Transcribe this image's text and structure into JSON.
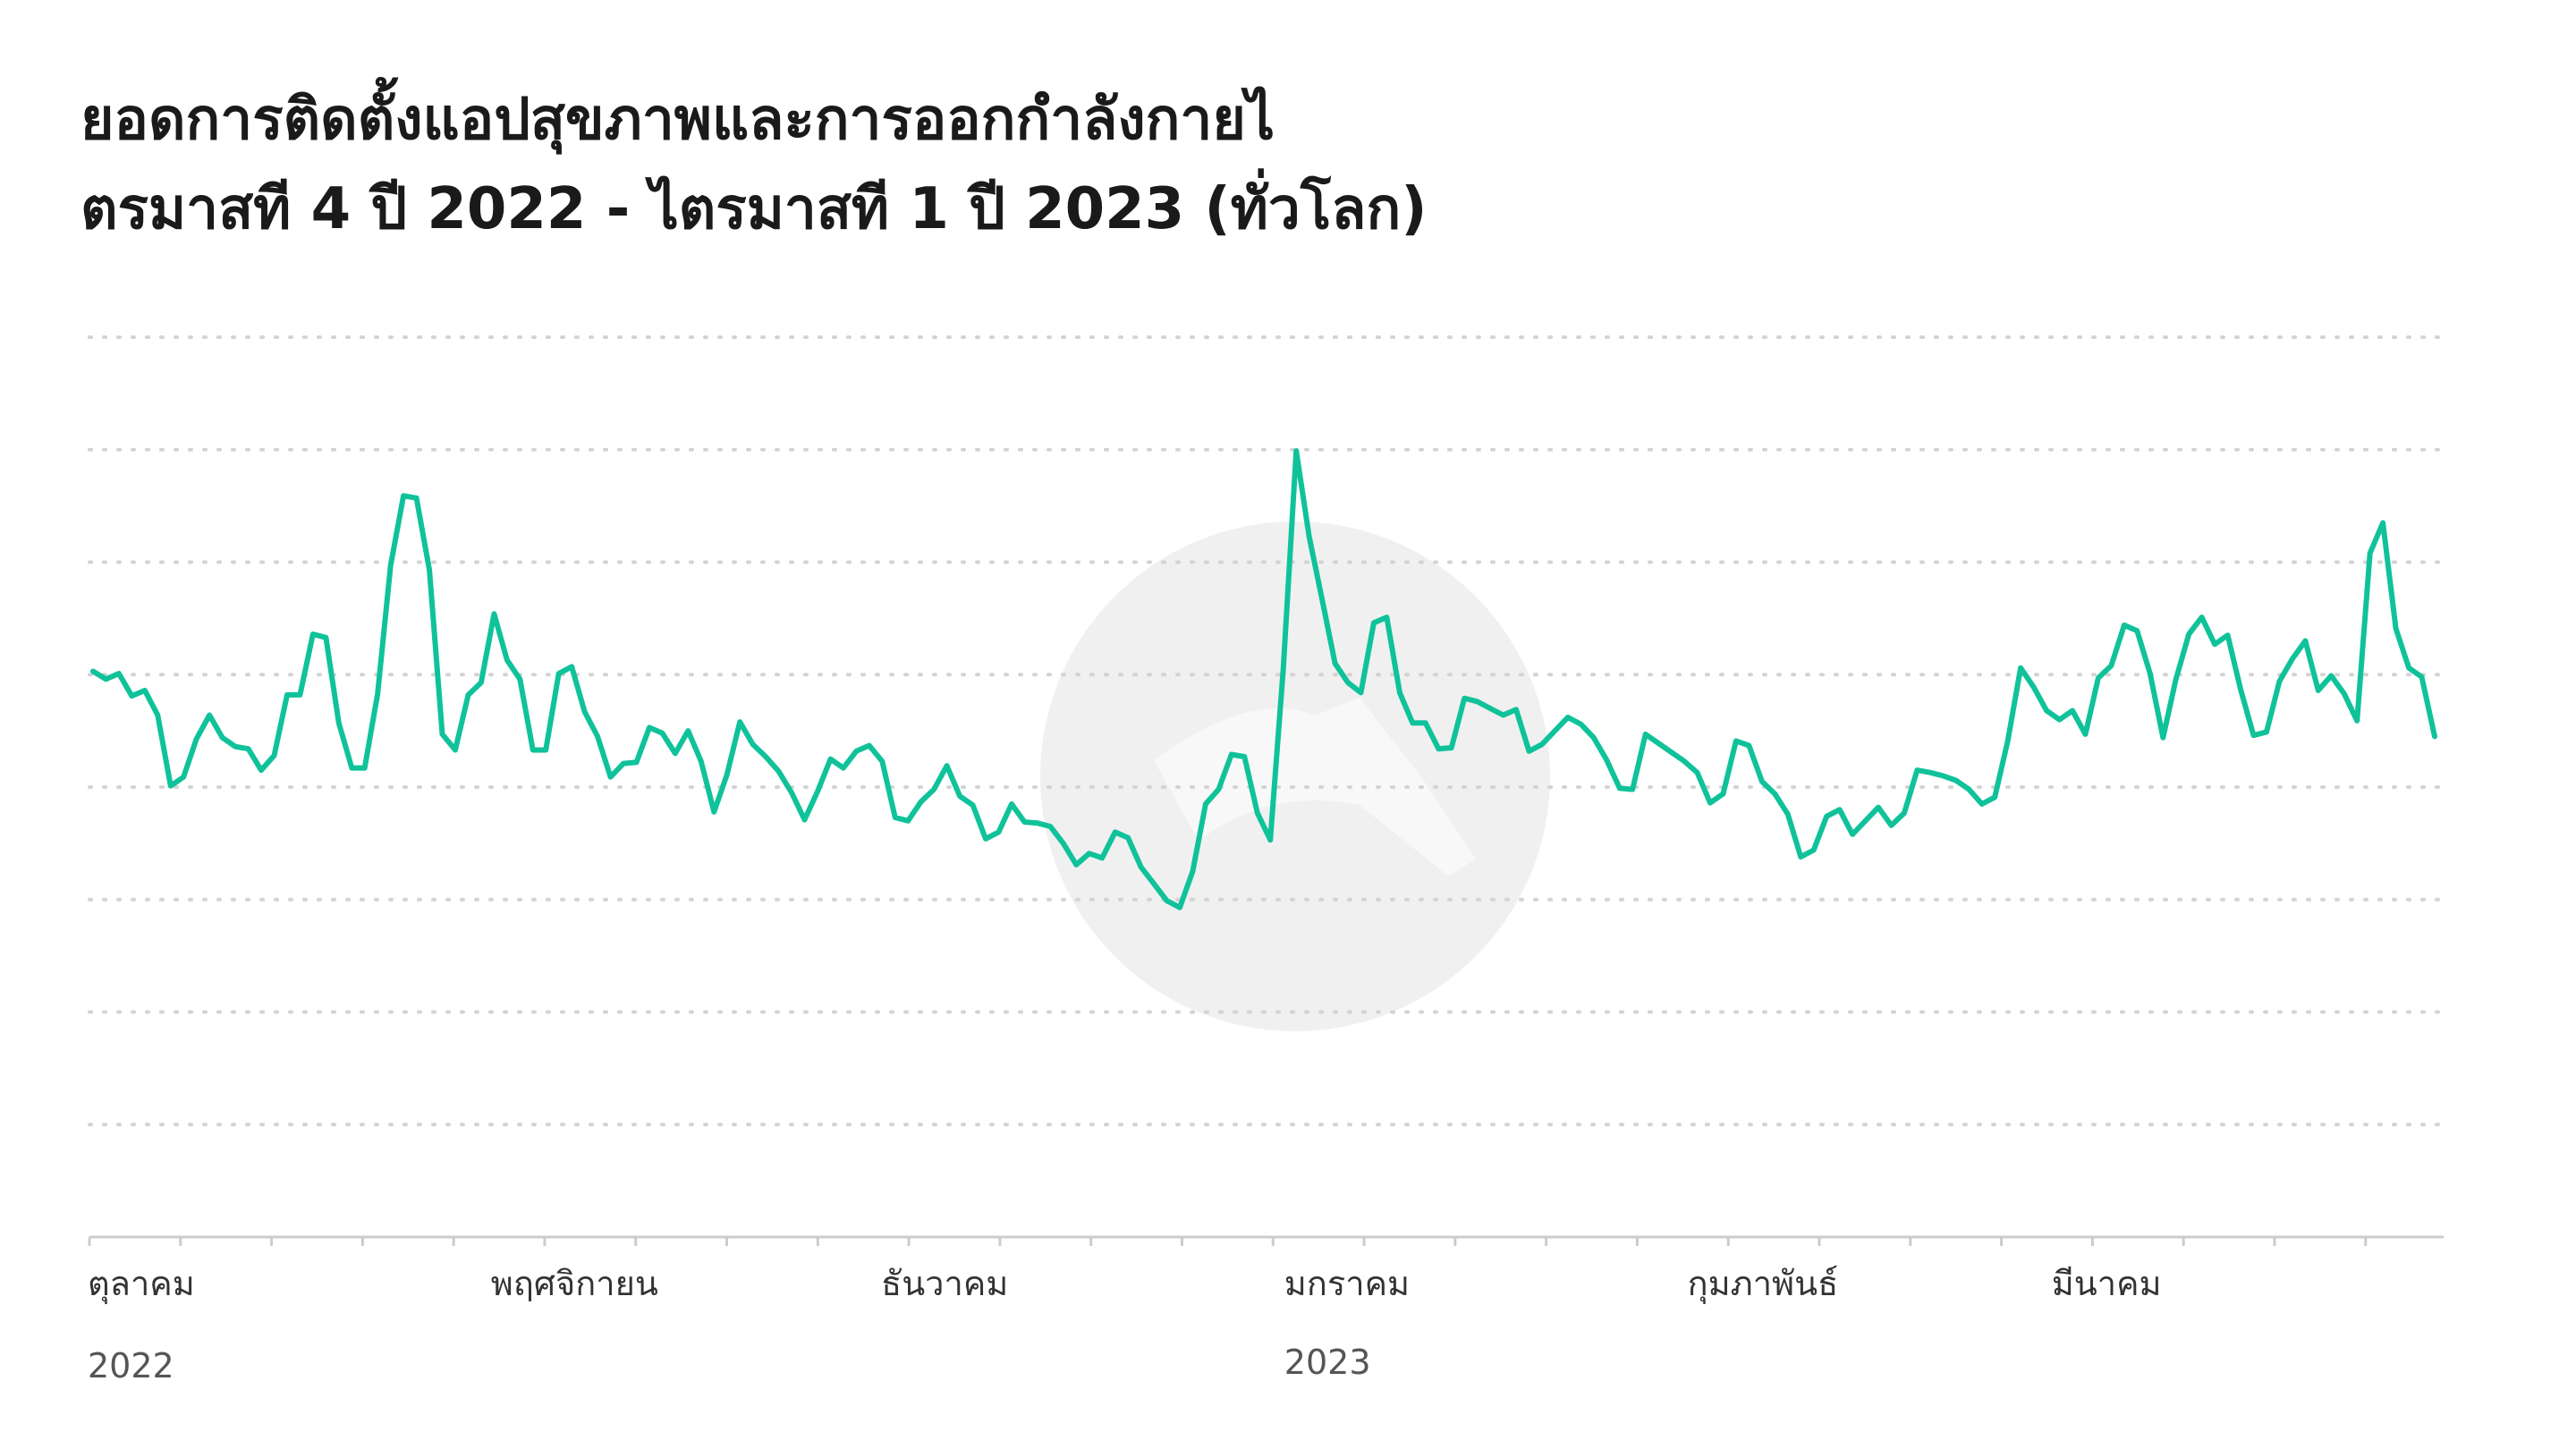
{
  "title_line1": "ยอดการติดตั้งแอปสุขภาพและการออกกำลังกายไ",
  "title_line2": "ตรมาสที 4 ปี 2022 - ไตรมาสที 1 ปี 2023 (ทั่วโลก)",
  "colors": {
    "line": "#10c29a",
    "grid": "#d3d3d3",
    "axis": "#cccccc",
    "watermark": "#f0f0f0"
  },
  "watermark_icon": "app-logo-icon",
  "chart_data": {
    "type": "line",
    "title": "ยอดการติดตั้งแอปสุขภาพและการออกกำลังกายไตรมาสที 4 ปี 2022 - ไตรมาสที 1 ปี 2023 (ทั่วโลก)",
    "xlabel": "",
    "ylabel": "",
    "x_start": "2022-10-01",
    "x_end": "2023-03-31",
    "xlim": [
      "2022-10-01",
      "2023-03-31"
    ],
    "ylim": [
      0,
      8
    ],
    "grid": true,
    "y_tick_labels_visible": false,
    "month_ticks": [
      {
        "label": "ตุลาคม",
        "year": "2022",
        "date": "2022-10-01"
      },
      {
        "label": "พฤศจิกายน",
        "year": "",
        "date": "2022-11-01"
      },
      {
        "label": "ธันวาคม",
        "year": "",
        "date": "2022-12-01"
      },
      {
        "label": "มกราคม",
        "year": "2023",
        "date": "2023-01-01"
      },
      {
        "label": "กุมภาพันธ์",
        "year": "",
        "date": "2023-02-01"
      },
      {
        "label": "มีนาคม",
        "year": "",
        "date": "2023-03-01"
      }
    ],
    "series": [
      {
        "name": "",
        "values": [
          5.03,
          4.96,
          5.01,
          4.81,
          4.86,
          4.64,
          4.01,
          4.09,
          4.43,
          4.64,
          4.44,
          4.36,
          4.34,
          4.15,
          4.28,
          4.82,
          4.82,
          5.36,
          5.33,
          4.57,
          4.17,
          4.17,
          4.83,
          5.97,
          6.59,
          6.57,
          5.93,
          4.47,
          4.33,
          4.82,
          4.93,
          5.54,
          5.13,
          4.96,
          4.33,
          4.33,
          5.01,
          5.07,
          4.67,
          4.45,
          4.09,
          4.21,
          4.22,
          4.53,
          4.48,
          4.3,
          4.5,
          4.23,
          3.78,
          4.11,
          4.58,
          4.38,
          4.27,
          4.14,
          3.95,
          3.71,
          3.96,
          4.25,
          4.17,
          4.32,
          4.37,
          4.23,
          3.73,
          3.7,
          3.87,
          3.98,
          4.19,
          3.92,
          3.84,
          3.54,
          3.6,
          3.85,
          3.69,
          3.68,
          3.65,
          3.5,
          3.31,
          3.41,
          3.37,
          3.6,
          3.55,
          3.29,
          3.14,
          2.99,
          2.93,
          3.25,
          3.85,
          3.98,
          4.29,
          4.27,
          3.77,
          3.53,
          5.05,
          6.99,
          6.23,
          5.67,
          5.1,
          4.93,
          4.84,
          5.46,
          5.51,
          4.84,
          4.57,
          4.57,
          4.34,
          4.35,
          4.79,
          4.76,
          4.7,
          4.64,
          4.69,
          4.32,
          4.38,
          4.5,
          4.62,
          4.56,
          4.44,
          4.24,
          3.99,
          3.98,
          4.47,
          4.39,
          4.31,
          4.23,
          4.13,
          3.86,
          3.94,
          4.41,
          4.37,
          4.05,
          3.94,
          3.76,
          3.38,
          3.44,
          3.74,
          3.8,
          3.58,
          3.7,
          3.82,
          3.66,
          3.77,
          4.15,
          4.13,
          4.1,
          4.06,
          3.98,
          3.85,
          3.91,
          4.41,
          5.06,
          4.89,
          4.68,
          4.6,
          4.68,
          4.47,
          4.97,
          5.08,
          5.44,
          5.39,
          5.01,
          4.44,
          4.96,
          5.36,
          5.51,
          5.27,
          5.35,
          4.87,
          4.46,
          4.49,
          4.94,
          5.14,
          5.3,
          4.86,
          4.99,
          4.83,
          4.59,
          6.08,
          6.35,
          5.41,
          5.06,
          4.98,
          4.45
        ]
      }
    ]
  }
}
